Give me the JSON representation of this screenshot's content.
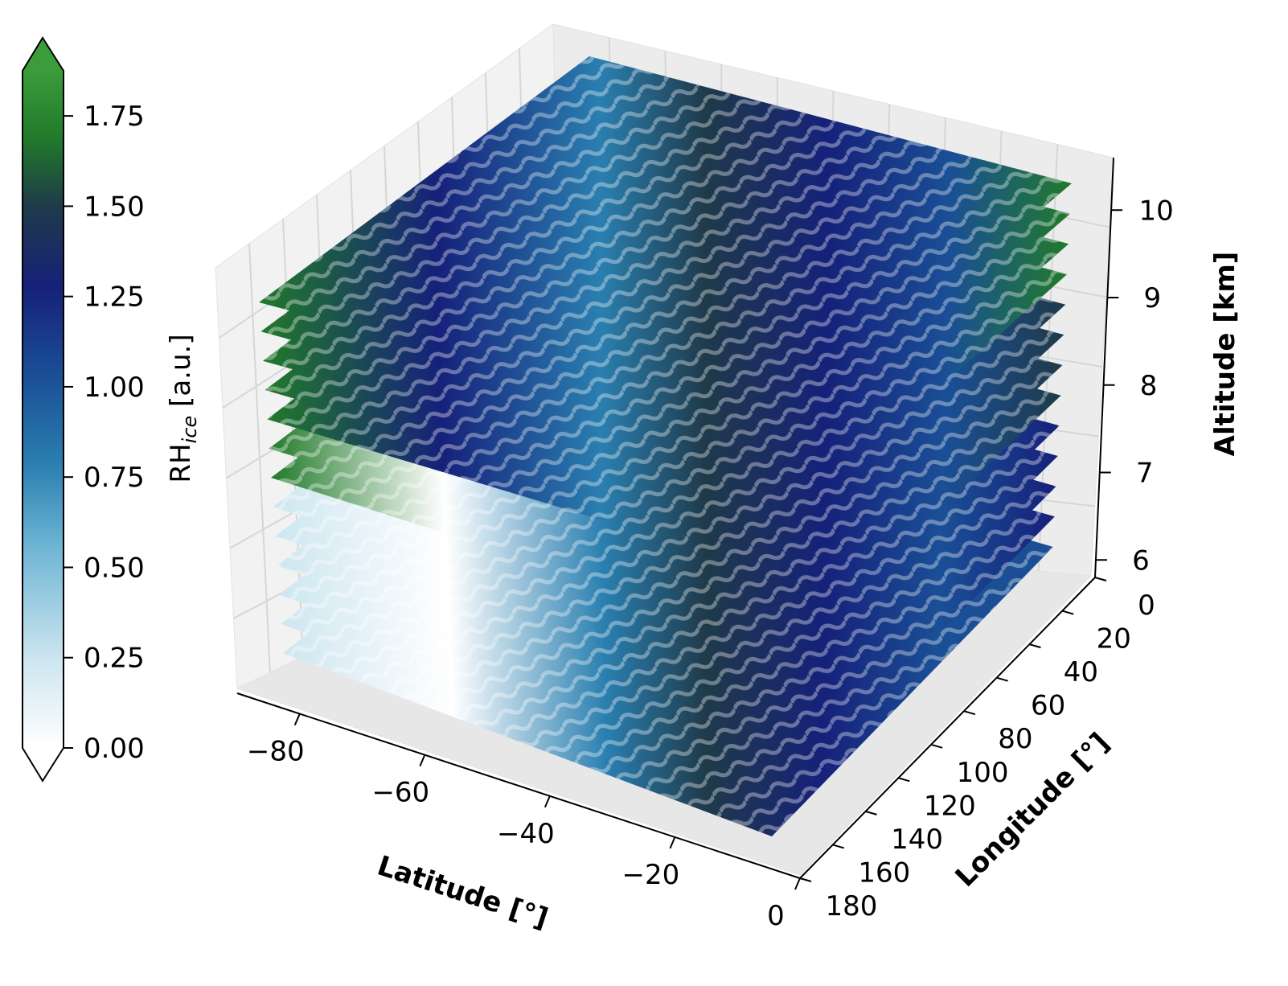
{
  "chart_data": {
    "type": "heatmap",
    "subtype": "3d-stacked-slices",
    "title": "",
    "colormap": [
      "#ffffff",
      "#cde6f0",
      "#6cb4d4",
      "#2a7fb0",
      "#1a4f96",
      "#16217a",
      "#1f3a4a",
      "#217a2a",
      "#3a9c3a"
    ],
    "colorbar": {
      "label_main": "RH",
      "label_sub": "ice",
      "label_unit": " [a.u.]",
      "range": [
        0.0,
        1.875
      ],
      "extend": "both",
      "ticks": [
        0.0,
        0.25,
        0.5,
        0.75,
        1.0,
        1.25,
        1.5,
        1.75
      ],
      "tick_labels": [
        "0.00",
        "0.25",
        "0.50",
        "0.75",
        "1.00",
        "1.25",
        "1.50",
        "1.75"
      ]
    },
    "axes": {
      "x": {
        "label": "Latitude [°]",
        "range": [
          -90,
          0
        ],
        "ticks": [
          -80,
          -60,
          -40,
          -20,
          0
        ],
        "tick_labels": [
          "−80",
          "−60",
          "−40",
          "−20",
          "0"
        ]
      },
      "y": {
        "label": "Longitude [°]",
        "range": [
          0,
          180
        ],
        "ticks": [
          0,
          20,
          40,
          60,
          80,
          100,
          120,
          140,
          160,
          180
        ],
        "tick_labels": [
          "0",
          "20",
          "40",
          "60",
          "80",
          "100",
          "120",
          "140",
          "160",
          "180"
        ]
      },
      "z": {
        "label": "Altitude [km]",
        "range": [
          5.8,
          10.6
        ],
        "ticks": [
          6,
          7,
          8,
          9,
          10
        ],
        "tick_labels": [
          "6",
          "7",
          "8",
          "9",
          "10"
        ]
      }
    },
    "slices": {
      "count": 13,
      "altitude_range_km": [
        6.0,
        10.4
      ]
    },
    "grid": true
  }
}
